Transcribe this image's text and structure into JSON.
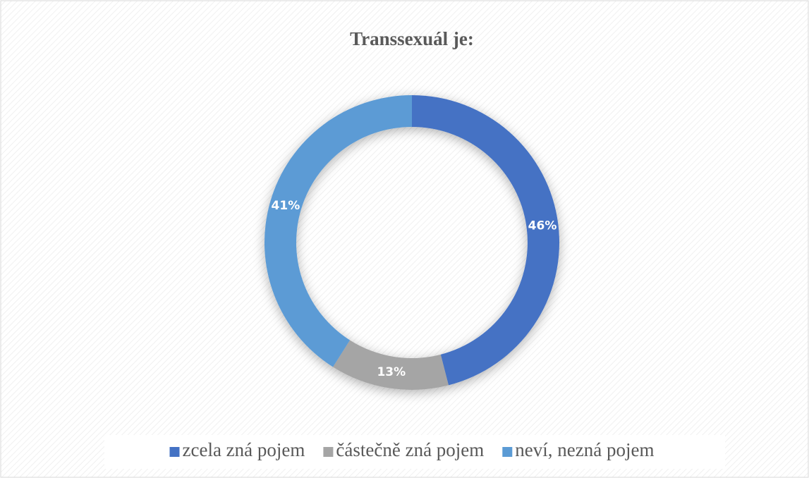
{
  "chart_data": {
    "type": "donut",
    "title": "Transsexuál je:",
    "categories": [
      "zcela zná pojem",
      "částečně zná pojem",
      "neví, nezná pojem"
    ],
    "values": [
      46,
      13,
      41
    ],
    "value_labels": [
      "46%",
      "13%",
      "41%"
    ],
    "colors": [
      "#4472c4",
      "#a5a5a5",
      "#5b9bd5"
    ],
    "legend": "bottom"
  }
}
